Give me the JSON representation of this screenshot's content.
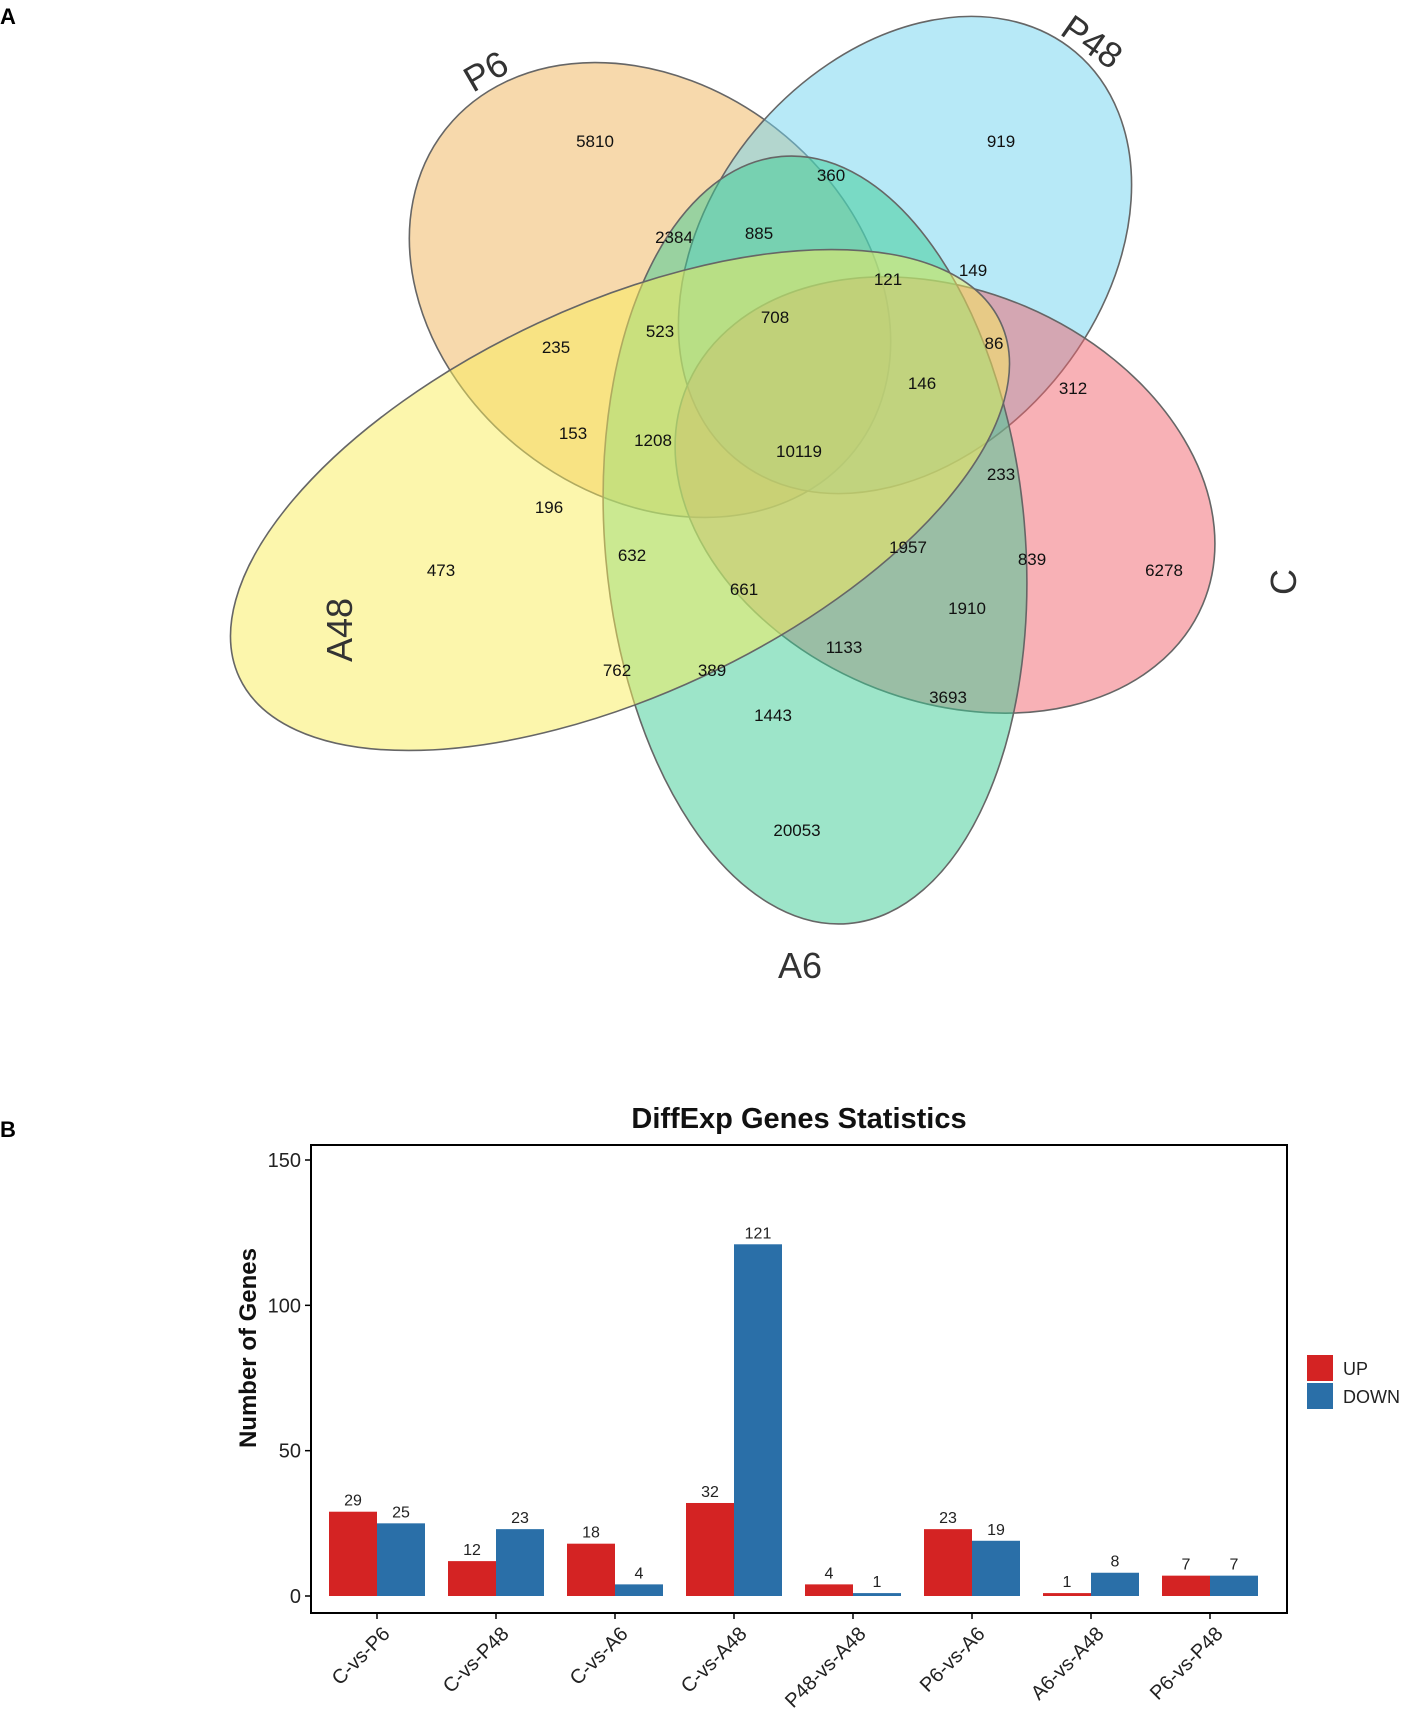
{
  "panels": {
    "a": "A",
    "b": "B"
  },
  "venn": {
    "sets": [
      {
        "name": "P6",
        "color": "#f0b35a"
      },
      {
        "name": "P48",
        "color": "#6fd3f0"
      },
      {
        "name": "C",
        "color": "#f2636d"
      },
      {
        "name": "A6",
        "color": "#3ccb93"
      },
      {
        "name": "A48",
        "color": "#f9ee5a"
      }
    ],
    "regions": [
      {
        "id": "P6",
        "value": "5810"
      },
      {
        "id": "P48",
        "value": "919"
      },
      {
        "id": "C",
        "value": "6278"
      },
      {
        "id": "A6",
        "value": "20053"
      },
      {
        "id": "A48",
        "value": "473"
      },
      {
        "id": "P6-P48",
        "value": "360"
      },
      {
        "id": "P6-A6",
        "value": "2384"
      },
      {
        "id": "P6-P48-A6",
        "value": "885"
      },
      {
        "id": "P48-C-A48",
        "value": "121"
      },
      {
        "id": "P48-A48",
        "value": "149"
      },
      {
        "id": "P6-P48-A6-A48",
        "value": "708"
      },
      {
        "id": "P6-A6-A48",
        "value": "523"
      },
      {
        "id": "P6-A48",
        "value": "235"
      },
      {
        "id": "P48-C-A48b",
        "value": "86"
      },
      {
        "id": "P48-C",
        "value": "312"
      },
      {
        "id": "P48-C-A6-A48",
        "value": "146"
      },
      {
        "id": "P6-C-A48",
        "value": "153"
      },
      {
        "id": "P6-C-A6-A48",
        "value": "1208"
      },
      {
        "id": "all",
        "value": "10119"
      },
      {
        "id": "P48-C-A6",
        "value": "233"
      },
      {
        "id": "C-A48",
        "value": "196"
      },
      {
        "id": "C-A6-A48",
        "value": "632"
      },
      {
        "id": "P6-C-A6",
        "value": "661"
      },
      {
        "id": "P6-P48-C-A6",
        "value": "1957"
      },
      {
        "id": "P6-C",
        "value": "839"
      },
      {
        "id": "P6-P48-C",
        "value": "1910"
      },
      {
        "id": "C-A6",
        "value": "1133"
      },
      {
        "id": "A6-A48",
        "value": "762"
      },
      {
        "id": "P6-A6-A48b",
        "value": "389"
      },
      {
        "id": "P6-A6b",
        "value": "1443"
      },
      {
        "id": "C-A6b",
        "value": "3693"
      }
    ]
  },
  "chart_data": {
    "type": "bar",
    "title": "DiffExp Genes Statistics",
    "xlabel": "",
    "ylabel": "Number of Genes",
    "ylim": [
      0,
      150
    ],
    "yticks": [
      "0",
      "50",
      "100",
      "150"
    ],
    "grid": false,
    "legend": "right",
    "categories": [
      "C-vs-P6",
      "C-vs-P48",
      "C-vs-A6",
      "C-vs-A48",
      "P48-vs-A48",
      "P6-vs-A6",
      "A6-vs-A48",
      "P6-vs-P48"
    ],
    "series": [
      {
        "name": "UP",
        "color": "#d42323",
        "values": [
          29,
          12,
          18,
          32,
          4,
          23,
          1,
          7
        ]
      },
      {
        "name": "DOWN",
        "color": "#2a6fa8",
        "values": [
          25,
          23,
          4,
          121,
          1,
          19,
          8,
          7
        ]
      }
    ]
  }
}
